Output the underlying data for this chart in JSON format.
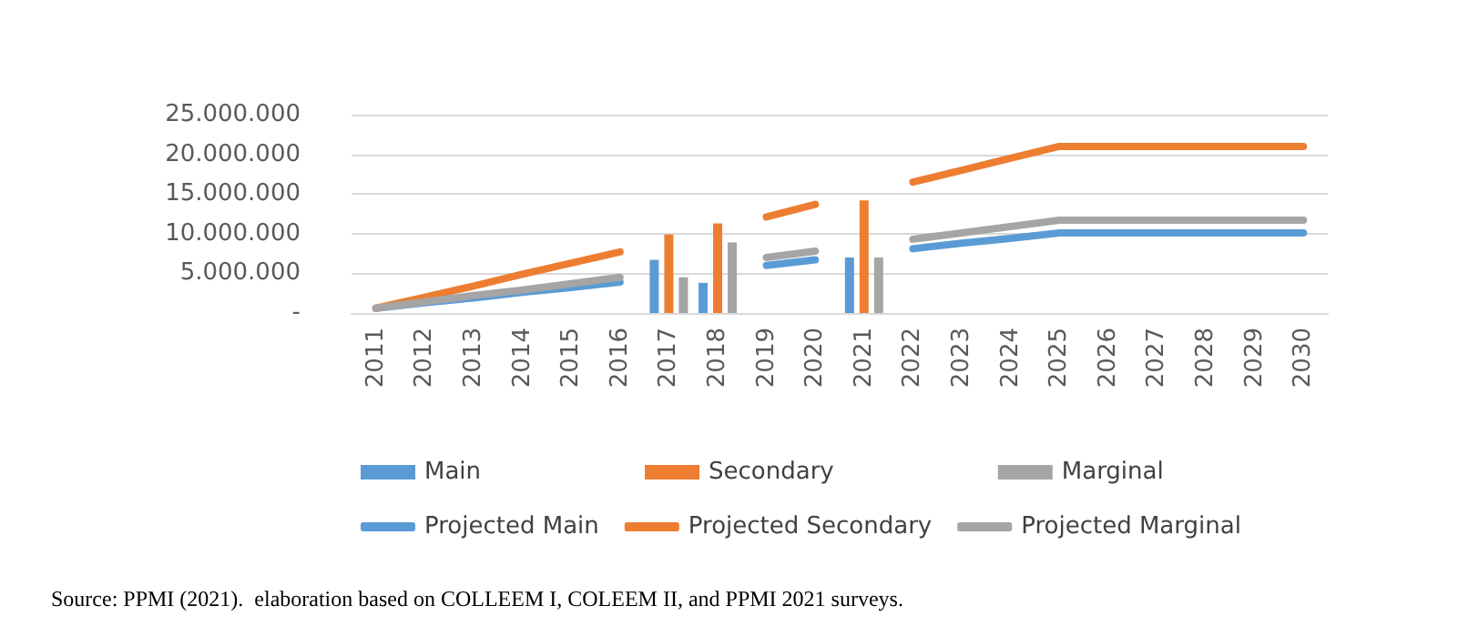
{
  "chart_data": {
    "type": "bar",
    "categories": [
      "2011",
      "2012",
      "2013",
      "2014",
      "2015",
      "2016",
      "2017",
      "2018",
      "2019",
      "2020",
      "2021",
      "2022",
      "2023",
      "2024",
      "2025",
      "2026",
      "2027",
      "2028",
      "2029",
      "2030"
    ],
    "series": [
      {
        "name": "Main",
        "color": "#5b9bd5",
        "values": [
          null,
          null,
          null,
          null,
          null,
          null,
          6700000,
          3800000,
          null,
          null,
          7000000,
          null,
          null,
          null,
          null,
          null,
          null,
          null,
          null,
          null
        ]
      },
      {
        "name": "Secondary",
        "color": "#ed7d31",
        "values": [
          null,
          null,
          null,
          null,
          null,
          null,
          9900000,
          11300000,
          null,
          null,
          14200000,
          null,
          null,
          null,
          null,
          null,
          null,
          null,
          null,
          null
        ]
      },
      {
        "name": "Marginal",
        "color": "#a5a5a5",
        "values": [
          null,
          null,
          null,
          null,
          null,
          null,
          4500000,
          8900000,
          null,
          null,
          7000000,
          null,
          null,
          null,
          null,
          null,
          null,
          null,
          null,
          null
        ]
      },
      {
        "name": "Projected Main",
        "type": "line",
        "color": "#5b9bd5",
        "values": [
          600000,
          1300000,
          1900000,
          2600000,
          3200000,
          3900000,
          null,
          null,
          6000000,
          6700000,
          null,
          8100000,
          8800000,
          9400000,
          10100000,
          10100000,
          10100000,
          10100000,
          10100000,
          10100000
        ]
      },
      {
        "name": "Projected Secondary",
        "type": "line",
        "color": "#ed7d31",
        "values": [
          600000,
          2000000,
          3400000,
          4900000,
          6300000,
          7700000,
          null,
          null,
          12100000,
          13700000,
          null,
          16500000,
          18000000,
          19500000,
          21000000,
          21000000,
          21000000,
          21000000,
          21000000,
          21000000
        ]
      },
      {
        "name": "Projected Marginal",
        "type": "line",
        "color": "#a5a5a5",
        "values": [
          600000,
          1400000,
          2200000,
          2900000,
          3700000,
          4500000,
          null,
          null,
          7000000,
          7800000,
          null,
          9300000,
          10100000,
          10900000,
          11700000,
          11700000,
          11700000,
          11700000,
          11700000,
          11700000
        ]
      }
    ],
    "ylim": [
      0,
      25000000
    ],
    "yticks": [
      {
        "value": 0,
        "label": "-"
      },
      {
        "value": 5000000,
        "label": "5.000.000"
      },
      {
        "value": 10000000,
        "label": "10.000.000"
      },
      {
        "value": 15000000,
        "label": "15.000.000"
      },
      {
        "value": 20000000,
        "label": "20.000.000"
      },
      {
        "value": 25000000,
        "label": "25.000.000"
      }
    ],
    "grid": "y",
    "legend": "bottom",
    "marker": "none",
    "line_style": "solid",
    "annotations": [
      "Source: PPMI (2021).  elaboration based on COLLEEM I, COLEEM II, and PPMI 2021 surveys."
    ]
  }
}
